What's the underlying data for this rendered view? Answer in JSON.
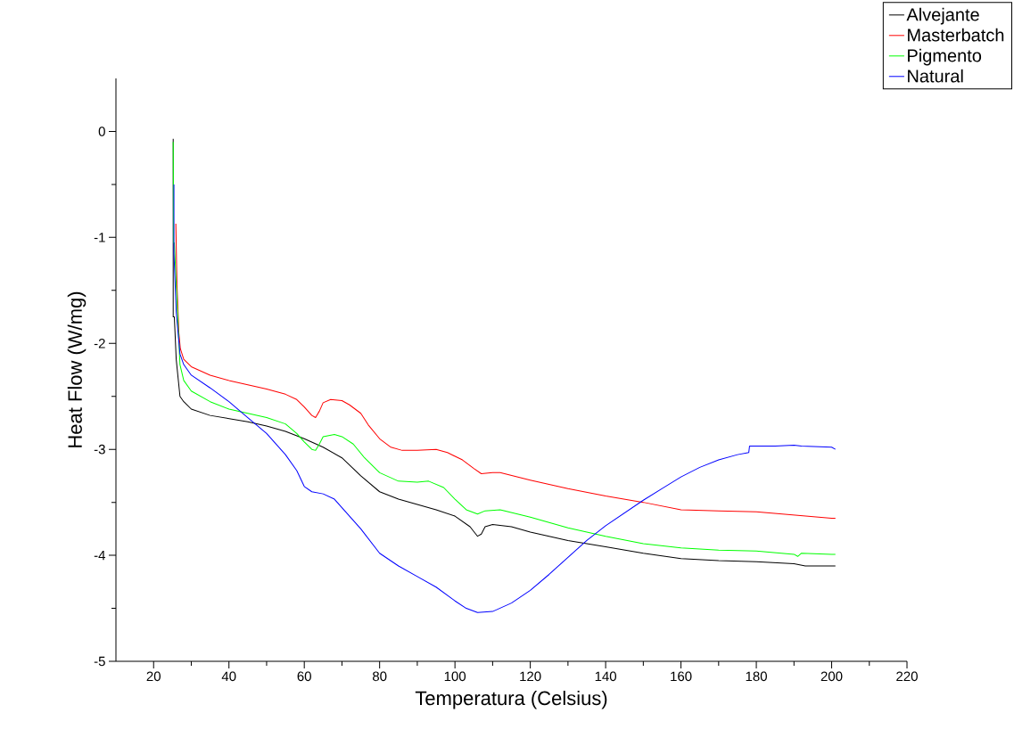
{
  "chart_data": {
    "type": "line",
    "xlabel": "Temperatura (Celsius)",
    "ylabel": "Heat Flow (W/mg)",
    "xlim": [
      10,
      220
    ],
    "ylim": [
      -5,
      0.5
    ],
    "xticks": [
      20,
      40,
      60,
      80,
      100,
      120,
      140,
      160,
      180,
      200,
      220
    ],
    "yticks": [
      -5,
      -4,
      -3,
      -2,
      -1,
      0
    ],
    "legend": "top right",
    "series": [
      {
        "name": "Alvejante",
        "color": "#000000",
        "x": [
          25.2,
          25.2,
          25.5,
          26,
          27,
          28,
          30,
          35,
          40,
          45,
          50,
          55,
          60,
          65,
          70,
          75,
          80,
          85,
          90,
          95,
          100,
          104,
          106,
          107,
          108,
          110,
          115,
          120,
          130,
          140,
          150,
          160,
          170,
          180,
          190,
          193,
          200,
          201
        ],
        "values": [
          -0.07,
          -1.75,
          -1.75,
          -2.15,
          -2.5,
          -2.55,
          -2.62,
          -2.68,
          -2.71,
          -2.74,
          -2.78,
          -2.83,
          -2.9,
          -2.98,
          -3.08,
          -3.25,
          -3.4,
          -3.47,
          -3.52,
          -3.57,
          -3.63,
          -3.73,
          -3.82,
          -3.8,
          -3.73,
          -3.71,
          -3.73,
          -3.78,
          -3.86,
          -3.92,
          -3.98,
          -4.03,
          -4.05,
          -4.06,
          -4.08,
          -4.1,
          -4.1,
          -4.1
        ]
      },
      {
        "name": "Masterbatch",
        "color": "#ff0000",
        "x": [
          25.9,
          26.2,
          26.7,
          27.1,
          28,
          30,
          35,
          40,
          45,
          50,
          55,
          58,
          60,
          62,
          63,
          64,
          65,
          67,
          70,
          72,
          75,
          77,
          80,
          83,
          86,
          90,
          95,
          98,
          102,
          105,
          107,
          110,
          112,
          120,
          130,
          140,
          150,
          160,
          170,
          180,
          190,
          200,
          201
        ],
        "values": [
          -0.87,
          -1.45,
          -1.9,
          -2.05,
          -2.15,
          -2.22,
          -2.3,
          -2.35,
          -2.39,
          -2.43,
          -2.48,
          -2.53,
          -2.6,
          -2.68,
          -2.7,
          -2.64,
          -2.56,
          -2.53,
          -2.54,
          -2.58,
          -2.66,
          -2.77,
          -2.9,
          -2.98,
          -3.01,
          -3.01,
          -3.0,
          -3.03,
          -3.1,
          -3.18,
          -3.23,
          -3.22,
          -3.22,
          -3.29,
          -3.37,
          -3.44,
          -3.5,
          -3.57,
          -3.58,
          -3.59,
          -3.62,
          -3.65,
          -3.65
        ]
      },
      {
        "name": "Pigmento",
        "color": "#00ff00",
        "x": [
          25.2,
          25.3,
          25.5,
          27,
          28,
          30,
          35,
          40,
          45,
          50,
          55,
          58,
          60,
          62,
          63,
          64,
          65,
          68,
          70,
          73,
          76,
          80,
          85,
          90,
          93,
          97,
          100,
          103,
          106,
          108,
          112,
          120,
          130,
          140,
          150,
          160,
          170,
          180,
          190,
          191,
          192,
          200,
          201
        ],
        "values": [
          -0.1,
          -1.05,
          -1.05,
          -2.2,
          -2.35,
          -2.45,
          -2.55,
          -2.62,
          -2.66,
          -2.7,
          -2.76,
          -2.85,
          -2.93,
          -3.0,
          -3.01,
          -2.95,
          -2.88,
          -2.86,
          -2.88,
          -2.95,
          -3.08,
          -3.22,
          -3.3,
          -3.31,
          -3.3,
          -3.36,
          -3.47,
          -3.57,
          -3.61,
          -3.58,
          -3.57,
          -3.64,
          -3.74,
          -3.82,
          -3.89,
          -3.93,
          -3.95,
          -3.96,
          -3.99,
          -4.01,
          -3.98,
          -3.99,
          -3.99
        ]
      },
      {
        "name": "Natural",
        "color": "#0000ff",
        "x": [
          25.4,
          25.4,
          26,
          27,
          28,
          30,
          35,
          40,
          45,
          50,
          55,
          58,
          60,
          62,
          65,
          68,
          70,
          75,
          80,
          85,
          90,
          95,
          100,
          103,
          106,
          110,
          115,
          120,
          125,
          130,
          135,
          140,
          145,
          150,
          155,
          160,
          165,
          170,
          175,
          178,
          178.2,
          185,
          190,
          192,
          200,
          201
        ],
        "values": [
          -0.5,
          -1.15,
          -1.7,
          -2.1,
          -2.2,
          -2.3,
          -2.42,
          -2.55,
          -2.7,
          -2.85,
          -3.05,
          -3.2,
          -3.35,
          -3.4,
          -3.42,
          -3.47,
          -3.55,
          -3.75,
          -3.98,
          -4.1,
          -4.2,
          -4.3,
          -4.43,
          -4.5,
          -4.54,
          -4.53,
          -4.45,
          -4.33,
          -4.18,
          -4.02,
          -3.86,
          -3.72,
          -3.6,
          -3.48,
          -3.37,
          -3.26,
          -3.17,
          -3.1,
          -3.05,
          -3.03,
          -2.97,
          -2.97,
          -2.96,
          -2.97,
          -2.98,
          -3.0
        ]
      }
    ]
  }
}
